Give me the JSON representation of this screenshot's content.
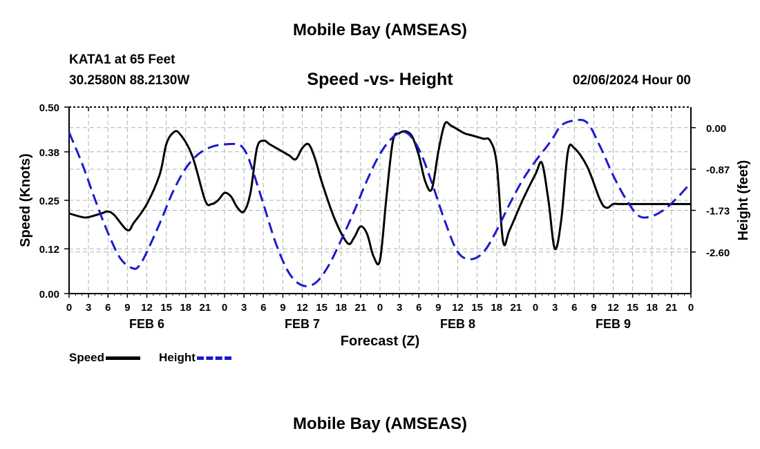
{
  "header": {
    "title": "Mobile Bay (AMSEAS)",
    "station": "KATA1 at 65 Feet",
    "coords": "30.2580N  88.2130W",
    "subtitle": "Speed -vs- Height",
    "datetime": "02/06/2024 Hour 00",
    "footer_title": "Mobile Bay (AMSEAS)"
  },
  "legend": {
    "speed_label": "Speed",
    "height_label": "Height"
  },
  "colors": {
    "speed": "#000000",
    "height": "#1a1acc",
    "grid": "#b0b0b0"
  },
  "chart_data": {
    "type": "line",
    "xlabel": "Forecast (Z)",
    "ylabel": "Speed (Knots)",
    "y2label": "Height (feet)",
    "x_range_hours": [
      0,
      96
    ],
    "xtick_labels": [
      "0",
      "3",
      "6",
      "9",
      "12",
      "15",
      "18",
      "21",
      "0",
      "3",
      "6",
      "9",
      "12",
      "15",
      "18",
      "21",
      "0",
      "3",
      "6",
      "9",
      "12",
      "15",
      "18",
      "21",
      "0",
      "3",
      "6",
      "9",
      "12",
      "15",
      "18",
      "21",
      "0"
    ],
    "day_labels": [
      {
        "label": "FEB 6",
        "hour": 12
      },
      {
        "label": "FEB 7",
        "hour": 36
      },
      {
        "label": "FEB 8",
        "hour": 60
      },
      {
        "label": "FEB 9",
        "hour": 84
      }
    ],
    "ylim": [
      0,
      0.5
    ],
    "yticks": [
      0.0,
      0.12,
      0.25,
      0.38,
      0.5
    ],
    "ytick_labels": [
      "0.00",
      "0.12",
      "0.25",
      "0.38",
      "0.50"
    ],
    "y2lim": [
      -3.47,
      0.43
    ],
    "y2ticks": [
      0.0,
      -0.87,
      -1.73,
      -2.6
    ],
    "y2tick_labels": [
      "0.00",
      "-0.87",
      "-1.73",
      "-2.60"
    ],
    "grid": true,
    "series": [
      {
        "name": "Speed",
        "axis": "left",
        "style": "solid",
        "x": [
          0,
          2,
          3,
          5,
          6,
          7,
          9,
          10,
          12,
          14,
          15,
          16,
          17,
          19,
          21,
          22,
          23,
          24,
          25,
          26,
          27,
          28,
          29,
          30,
          31,
          32,
          33,
          34,
          35,
          36,
          37,
          38,
          39,
          41,
          43,
          44,
          45,
          46,
          47,
          48,
          49,
          50,
          51,
          52,
          53,
          54,
          55,
          56,
          57,
          58,
          59,
          61,
          62,
          63,
          64,
          65,
          66,
          67,
          68,
          70,
          72,
          73,
          74,
          75,
          76,
          77,
          78,
          80,
          82,
          83,
          84,
          85,
          86,
          87,
          88,
          89,
          90,
          91,
          92,
          94,
          96
        ],
        "y": [
          0.215,
          0.205,
          0.205,
          0.215,
          0.22,
          0.21,
          0.17,
          0.19,
          0.24,
          0.32,
          0.4,
          0.43,
          0.43,
          0.37,
          0.25,
          0.24,
          0.25,
          0.27,
          0.26,
          0.23,
          0.22,
          0.27,
          0.39,
          0.41,
          0.4,
          0.39,
          0.38,
          0.37,
          0.36,
          0.39,
          0.4,
          0.36,
          0.3,
          0.2,
          0.135,
          0.15,
          0.18,
          0.16,
          0.1,
          0.09,
          0.26,
          0.41,
          0.43,
          0.435,
          0.42,
          0.37,
          0.3,
          0.28,
          0.38,
          0.455,
          0.45,
          0.43,
          0.425,
          0.42,
          0.415,
          0.41,
          0.35,
          0.14,
          0.17,
          0.25,
          0.32,
          0.35,
          0.25,
          0.12,
          0.2,
          0.38,
          0.39,
          0.34,
          0.25,
          0.23,
          0.24,
          0.24,
          0.24,
          0.24,
          0.24,
          0.24,
          0.24,
          0.24,
          0.24,
          0.24,
          0.24
        ]
      },
      {
        "name": "Height",
        "axis": "right",
        "style": "dashed",
        "x": [
          0,
          2,
          4,
          6,
          8,
          10,
          11,
          12,
          14,
          16,
          18,
          20,
          22,
          24,
          26,
          27,
          28,
          30,
          32,
          34,
          36,
          38,
          40,
          42,
          44,
          46,
          48,
          50,
          52,
          54,
          56,
          58,
          60,
          62,
          64,
          66,
          68,
          70,
          72,
          74,
          75,
          76,
          78,
          80,
          82,
          84,
          86,
          88,
          90,
          92,
          94,
          96
        ],
        "y": [
          -0.1,
          -0.75,
          -1.5,
          -2.2,
          -2.75,
          -2.95,
          -2.85,
          -2.6,
          -2.0,
          -1.35,
          -0.85,
          -0.55,
          -0.4,
          -0.35,
          -0.35,
          -0.45,
          -0.75,
          -1.6,
          -2.45,
          -3.05,
          -3.3,
          -3.25,
          -2.9,
          -2.35,
          -1.75,
          -1.1,
          -0.55,
          -0.2,
          -0.1,
          -0.45,
          -1.15,
          -1.95,
          -2.6,
          -2.75,
          -2.6,
          -2.15,
          -1.6,
          -1.1,
          -0.7,
          -0.35,
          -0.15,
          0.05,
          0.15,
          0.1,
          -0.4,
          -1.0,
          -1.5,
          -1.85,
          -1.85,
          -1.7,
          -1.45,
          -1.15
        ]
      }
    ]
  }
}
